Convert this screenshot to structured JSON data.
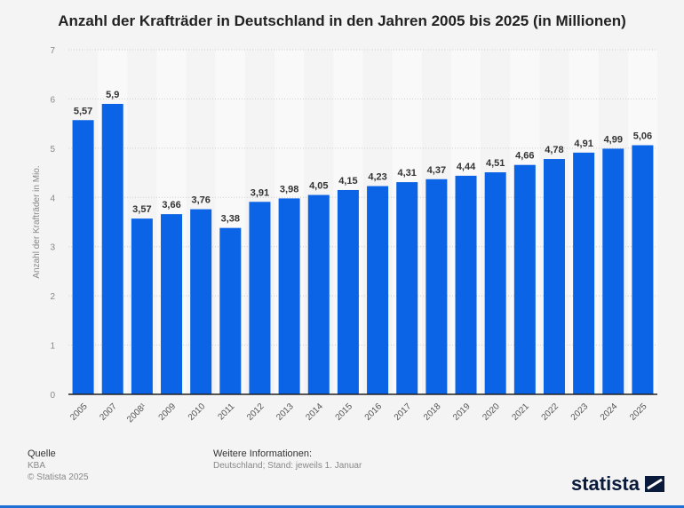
{
  "chart_data": {
    "type": "bar",
    "title": "Anzahl der Krafträder in Deutschland in den Jahren 2005 bis 2025 (in Millionen)",
    "ylabel": "Anzahl der Krafträder in Mio.",
    "xlabel": "",
    "ylim": [
      0,
      7
    ],
    "yticks": [
      "0",
      "1",
      "2",
      "3",
      "4",
      "5",
      "6",
      "7"
    ],
    "categories": [
      "2005",
      "2007",
      "2008¹",
      "2009",
      "2010",
      "2011",
      "2012",
      "2013",
      "2014",
      "2015",
      "2016",
      "2017",
      "2018",
      "2019",
      "2020",
      "2021",
      "2022",
      "2023",
      "2024",
      "2025"
    ],
    "values": [
      5.57,
      5.9,
      3.57,
      3.66,
      3.76,
      3.38,
      3.91,
      3.98,
      4.05,
      4.15,
      4.23,
      4.31,
      4.37,
      4.44,
      4.51,
      4.66,
      4.78,
      4.91,
      4.99,
      5.06
    ],
    "labels": [
      "5,57",
      "5,9",
      "3,57",
      "3,66",
      "3,76",
      "3,38",
      "3,91",
      "3,98",
      "4,05",
      "4,15",
      "4,23",
      "4,31",
      "4,37",
      "4,44",
      "4,51",
      "4,66",
      "4,78",
      "4,91",
      "4,99",
      "5,06"
    ],
    "grid": true,
    "bar_color": "#0b63e5"
  },
  "footer": {
    "source_heading": "Quelle",
    "source": "KBA",
    "copyright": "© Statista 2025",
    "info_heading": "Weitere Informationen:",
    "info": "Deutschland; Stand: jeweils 1. Januar"
  },
  "logo": {
    "text": "statista",
    "icon": "statista-logo-icon"
  }
}
